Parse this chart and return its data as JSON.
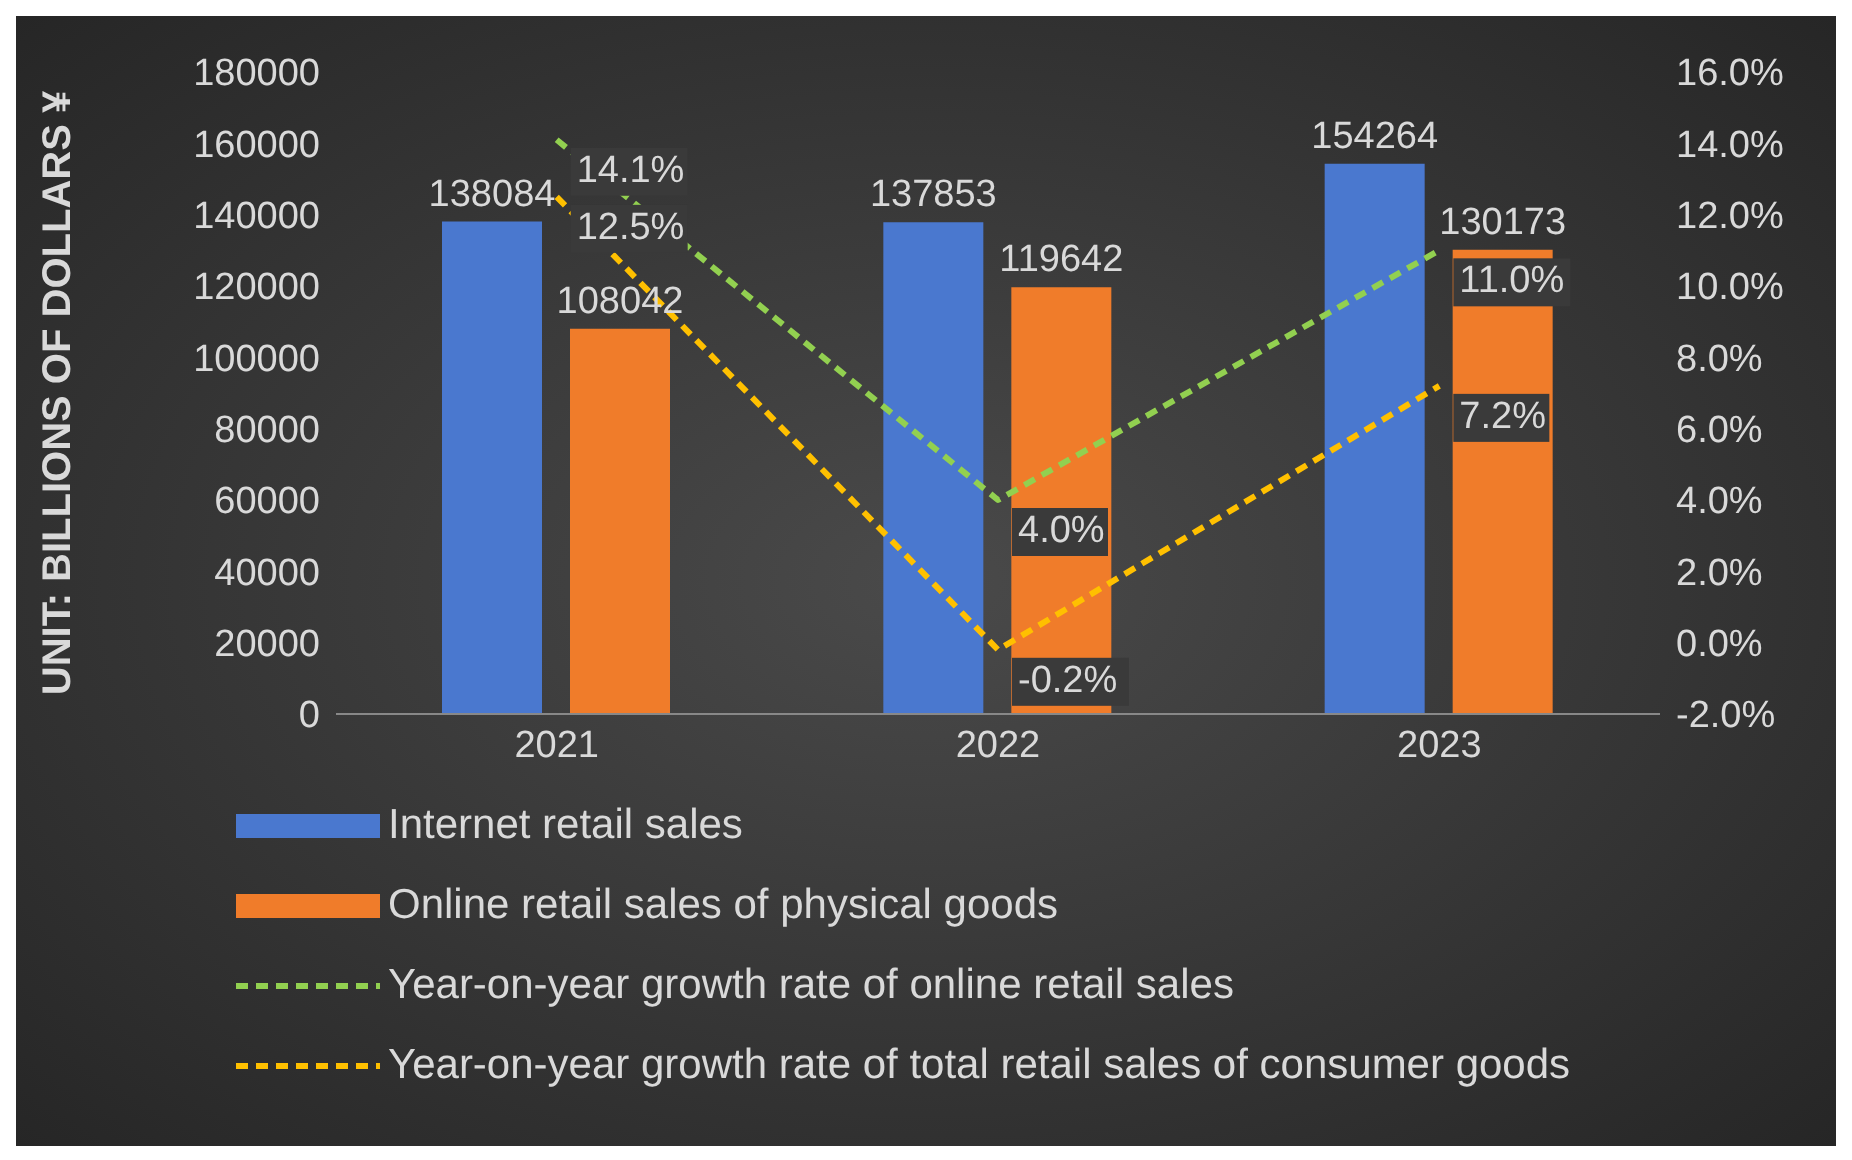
{
  "chart_data": {
    "type": "bar",
    "ylabel": "UNIT: BILLIONS OF DOLLARS ¥",
    "categories": [
      "2021",
      "2022",
      "2023"
    ],
    "series": [
      {
        "name": "Internet retail sales",
        "color": "#4a78cf",
        "values": [
          138084,
          137853,
          154264
        ],
        "value_labels": [
          "138084",
          "137853",
          "154264"
        ]
      },
      {
        "name": "Online retail sales of physical goods",
        "color": "#f07c2a",
        "values": [
          108042,
          119642,
          130173
        ],
        "value_labels": [
          "108042",
          "119642",
          "130173"
        ]
      },
      {
        "name": "Year-on-year growth rate of online retail sales",
        "type": "line",
        "axis": "y2",
        "color": "#92d050",
        "values": [
          14.1,
          4.0,
          11.0
        ],
        "value_labels": [
          "14.1%",
          "4.0%",
          "11.0%"
        ]
      },
      {
        "name": "Year-on-year growth rate of total retail sales of consumer goods",
        "type": "line",
        "axis": "y2",
        "color": "#ffc000",
        "values": [
          12.5,
          -0.2,
          7.2
        ],
        "value_labels": [
          "12.5%",
          "-0.2%",
          "7.2%"
        ]
      }
    ],
    "ylim": [
      0,
      180000
    ],
    "yticks": [
      0,
      20000,
      40000,
      60000,
      80000,
      100000,
      120000,
      140000,
      160000,
      180000
    ],
    "y2lim": [
      -2,
      16
    ],
    "y2ticks": [
      {
        "value": -2,
        "label": "-2.0%"
      },
      {
        "value": 0,
        "label": "0.0%"
      },
      {
        "value": 2,
        "label": "2.0%"
      },
      {
        "value": 4,
        "label": "4.0%"
      },
      {
        "value": 6,
        "label": "6.0%"
      },
      {
        "value": 8,
        "label": "8.0%"
      },
      {
        "value": 10,
        "label": "10.0%"
      },
      {
        "value": 12,
        "label": "12.0%"
      },
      {
        "value": 14,
        "label": "14.0%"
      },
      {
        "value": 16,
        "label": "16.0%"
      }
    ],
    "grid": false,
    "legend": "bottom",
    "marker": "none",
    "line_style": "dashed"
  }
}
